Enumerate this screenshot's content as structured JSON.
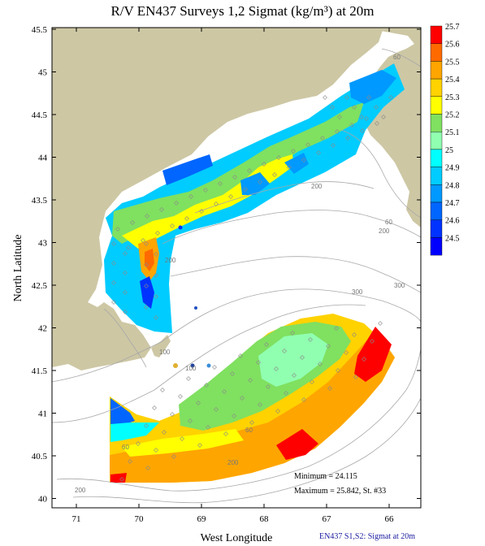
{
  "title": "R/V EN437 Surveys 1,2 Sigmat (kg/m³) at 20m",
  "axes": {
    "xlabel": "West Longitude",
    "ylabel": "North Latitude",
    "x_ticks": [
      "71",
      "70",
      "69",
      "68",
      "67",
      "66"
    ],
    "y_ticks": [
      "45.5",
      "45",
      "44.5",
      "44",
      "43.5",
      "43",
      "42.5",
      "42",
      "41.5",
      "41",
      "40.5",
      "40"
    ]
  },
  "colorbar": {
    "labels": [
      "25.7",
      "25.6",
      "25.5",
      "25.4",
      "25.3",
      "25.2",
      "25.1",
      "25",
      "24.9",
      "24.8",
      "24.7",
      "24.6",
      "24.5"
    ],
    "colors": [
      "#ff0000",
      "#ff6a00",
      "#ffa500",
      "#ffd200",
      "#ffff00",
      "#80e060",
      "#90ffb0",
      "#00ffff",
      "#00ccff",
      "#0099ff",
      "#0066ff",
      "#0033ff",
      "#0000ff"
    ]
  },
  "depth_labels": [
    "60",
    "200",
    "60",
    "200",
    "300",
    "100",
    "200",
    "300",
    "60",
    "60",
    "200",
    "100",
    "200"
  ],
  "stats": {
    "minimum": "Minimum = 24.115",
    "maximum": "Maximum = 25.842, St. #33"
  },
  "footer": "EN437 S1,S2: Sigmat at 20m",
  "colors": {
    "land": "#cdc7a4",
    "contour": "#a8a8a8",
    "station": "#8a8a8a"
  }
}
